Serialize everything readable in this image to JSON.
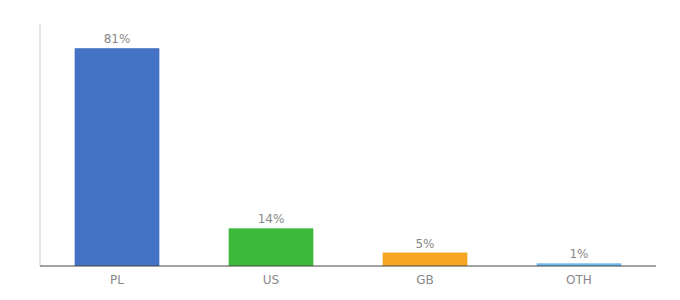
{
  "chart_data": {
    "type": "bar",
    "categories": [
      "PL",
      "US",
      "GB",
      "OTH"
    ],
    "values": [
      81,
      14,
      5,
      1
    ],
    "value_labels": [
      "81%",
      "14%",
      "5%",
      "1%"
    ],
    "colors": [
      "#4472c4",
      "#3cb83a",
      "#f5a623",
      "#6db8f0"
    ],
    "ylim": [
      0,
      90
    ],
    "data_labels": true,
    "tick_labels": "x",
    "grid": false
  }
}
